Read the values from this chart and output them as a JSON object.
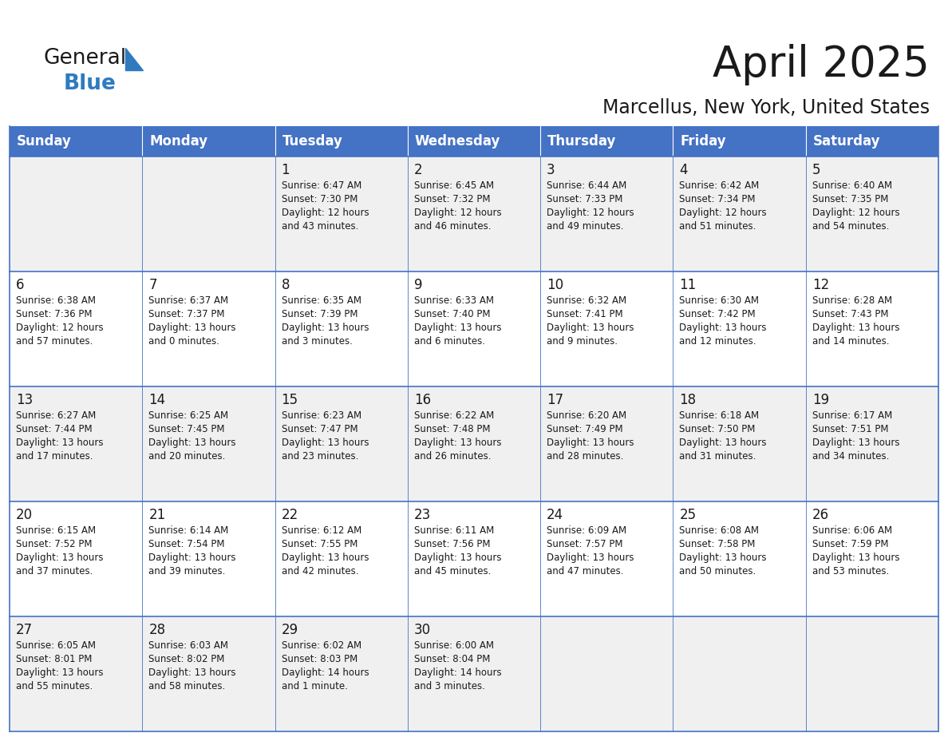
{
  "title": "April 2025",
  "subtitle": "Marcellus, New York, United States",
  "header_bg": "#4472C4",
  "header_text_color": "#FFFFFF",
  "cell_bg_light": "#F0F0F0",
  "cell_bg_white": "#FFFFFF",
  "border_color": "#4472C4",
  "day_names": [
    "Sunday",
    "Monday",
    "Tuesday",
    "Wednesday",
    "Thursday",
    "Friday",
    "Saturday"
  ],
  "title_color": "#1a1a1a",
  "subtitle_color": "#1a1a1a",
  "text_color": "#1a1a1a",
  "logo_black": "#1a1a1a",
  "logo_blue": "#2e7bbf",
  "logo_triangle": "#2e7bbf",
  "weeks": [
    [
      {
        "day": "",
        "info": ""
      },
      {
        "day": "",
        "info": ""
      },
      {
        "day": "1",
        "info": "Sunrise: 6:47 AM\nSunset: 7:30 PM\nDaylight: 12 hours\nand 43 minutes."
      },
      {
        "day": "2",
        "info": "Sunrise: 6:45 AM\nSunset: 7:32 PM\nDaylight: 12 hours\nand 46 minutes."
      },
      {
        "day": "3",
        "info": "Sunrise: 6:44 AM\nSunset: 7:33 PM\nDaylight: 12 hours\nand 49 minutes."
      },
      {
        "day": "4",
        "info": "Sunrise: 6:42 AM\nSunset: 7:34 PM\nDaylight: 12 hours\nand 51 minutes."
      },
      {
        "day": "5",
        "info": "Sunrise: 6:40 AM\nSunset: 7:35 PM\nDaylight: 12 hours\nand 54 minutes."
      }
    ],
    [
      {
        "day": "6",
        "info": "Sunrise: 6:38 AM\nSunset: 7:36 PM\nDaylight: 12 hours\nand 57 minutes."
      },
      {
        "day": "7",
        "info": "Sunrise: 6:37 AM\nSunset: 7:37 PM\nDaylight: 13 hours\nand 0 minutes."
      },
      {
        "day": "8",
        "info": "Sunrise: 6:35 AM\nSunset: 7:39 PM\nDaylight: 13 hours\nand 3 minutes."
      },
      {
        "day": "9",
        "info": "Sunrise: 6:33 AM\nSunset: 7:40 PM\nDaylight: 13 hours\nand 6 minutes."
      },
      {
        "day": "10",
        "info": "Sunrise: 6:32 AM\nSunset: 7:41 PM\nDaylight: 13 hours\nand 9 minutes."
      },
      {
        "day": "11",
        "info": "Sunrise: 6:30 AM\nSunset: 7:42 PM\nDaylight: 13 hours\nand 12 minutes."
      },
      {
        "day": "12",
        "info": "Sunrise: 6:28 AM\nSunset: 7:43 PM\nDaylight: 13 hours\nand 14 minutes."
      }
    ],
    [
      {
        "day": "13",
        "info": "Sunrise: 6:27 AM\nSunset: 7:44 PM\nDaylight: 13 hours\nand 17 minutes."
      },
      {
        "day": "14",
        "info": "Sunrise: 6:25 AM\nSunset: 7:45 PM\nDaylight: 13 hours\nand 20 minutes."
      },
      {
        "day": "15",
        "info": "Sunrise: 6:23 AM\nSunset: 7:47 PM\nDaylight: 13 hours\nand 23 minutes."
      },
      {
        "day": "16",
        "info": "Sunrise: 6:22 AM\nSunset: 7:48 PM\nDaylight: 13 hours\nand 26 minutes."
      },
      {
        "day": "17",
        "info": "Sunrise: 6:20 AM\nSunset: 7:49 PM\nDaylight: 13 hours\nand 28 minutes."
      },
      {
        "day": "18",
        "info": "Sunrise: 6:18 AM\nSunset: 7:50 PM\nDaylight: 13 hours\nand 31 minutes."
      },
      {
        "day": "19",
        "info": "Sunrise: 6:17 AM\nSunset: 7:51 PM\nDaylight: 13 hours\nand 34 minutes."
      }
    ],
    [
      {
        "day": "20",
        "info": "Sunrise: 6:15 AM\nSunset: 7:52 PM\nDaylight: 13 hours\nand 37 minutes."
      },
      {
        "day": "21",
        "info": "Sunrise: 6:14 AM\nSunset: 7:54 PM\nDaylight: 13 hours\nand 39 minutes."
      },
      {
        "day": "22",
        "info": "Sunrise: 6:12 AM\nSunset: 7:55 PM\nDaylight: 13 hours\nand 42 minutes."
      },
      {
        "day": "23",
        "info": "Sunrise: 6:11 AM\nSunset: 7:56 PM\nDaylight: 13 hours\nand 45 minutes."
      },
      {
        "day": "24",
        "info": "Sunrise: 6:09 AM\nSunset: 7:57 PM\nDaylight: 13 hours\nand 47 minutes."
      },
      {
        "day": "25",
        "info": "Sunrise: 6:08 AM\nSunset: 7:58 PM\nDaylight: 13 hours\nand 50 minutes."
      },
      {
        "day": "26",
        "info": "Sunrise: 6:06 AM\nSunset: 7:59 PM\nDaylight: 13 hours\nand 53 minutes."
      }
    ],
    [
      {
        "day": "27",
        "info": "Sunrise: 6:05 AM\nSunset: 8:01 PM\nDaylight: 13 hours\nand 55 minutes."
      },
      {
        "day": "28",
        "info": "Sunrise: 6:03 AM\nSunset: 8:02 PM\nDaylight: 13 hours\nand 58 minutes."
      },
      {
        "day": "29",
        "info": "Sunrise: 6:02 AM\nSunset: 8:03 PM\nDaylight: 14 hours\nand 1 minute."
      },
      {
        "day": "30",
        "info": "Sunrise: 6:00 AM\nSunset: 8:04 PM\nDaylight: 14 hours\nand 3 minutes."
      },
      {
        "day": "",
        "info": ""
      },
      {
        "day": "",
        "info": ""
      },
      {
        "day": "",
        "info": ""
      }
    ]
  ]
}
